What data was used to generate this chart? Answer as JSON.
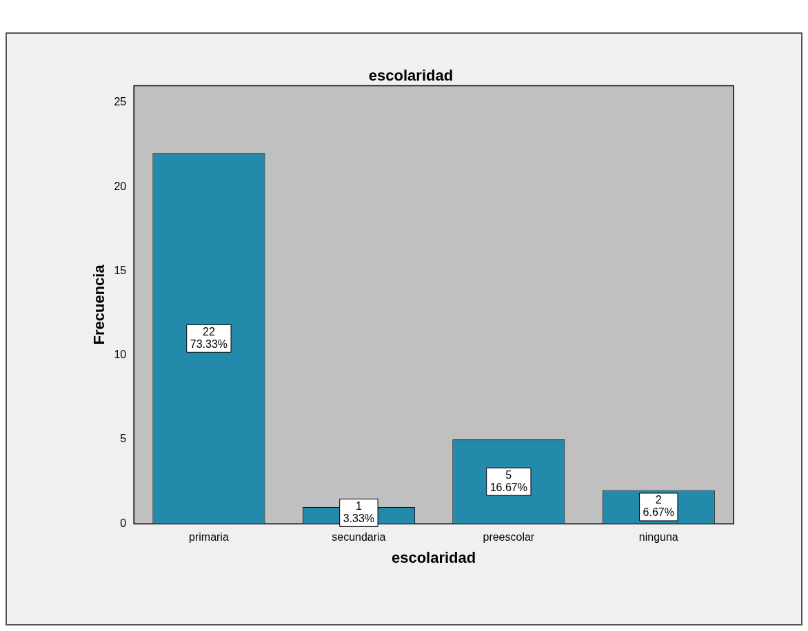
{
  "chart_data": {
    "type": "bar",
    "title": "escolaridad",
    "xlabel": "escolaridad",
    "ylabel": "Frecuencia",
    "categories": [
      "primaria",
      "secundaria",
      "preescolar",
      "ninguna"
    ],
    "values": [
      22,
      1,
      5,
      2
    ],
    "value_labels": [
      "22\n73.33%",
      "1\n3.33%",
      "5\n16.67%",
      "2\n6.67%"
    ],
    "color": "#238aab",
    "ylim": [
      0,
      26
    ],
    "yticks": [
      0,
      5,
      10,
      15,
      20,
      25
    ],
    "grid": false,
    "legend": false
  }
}
